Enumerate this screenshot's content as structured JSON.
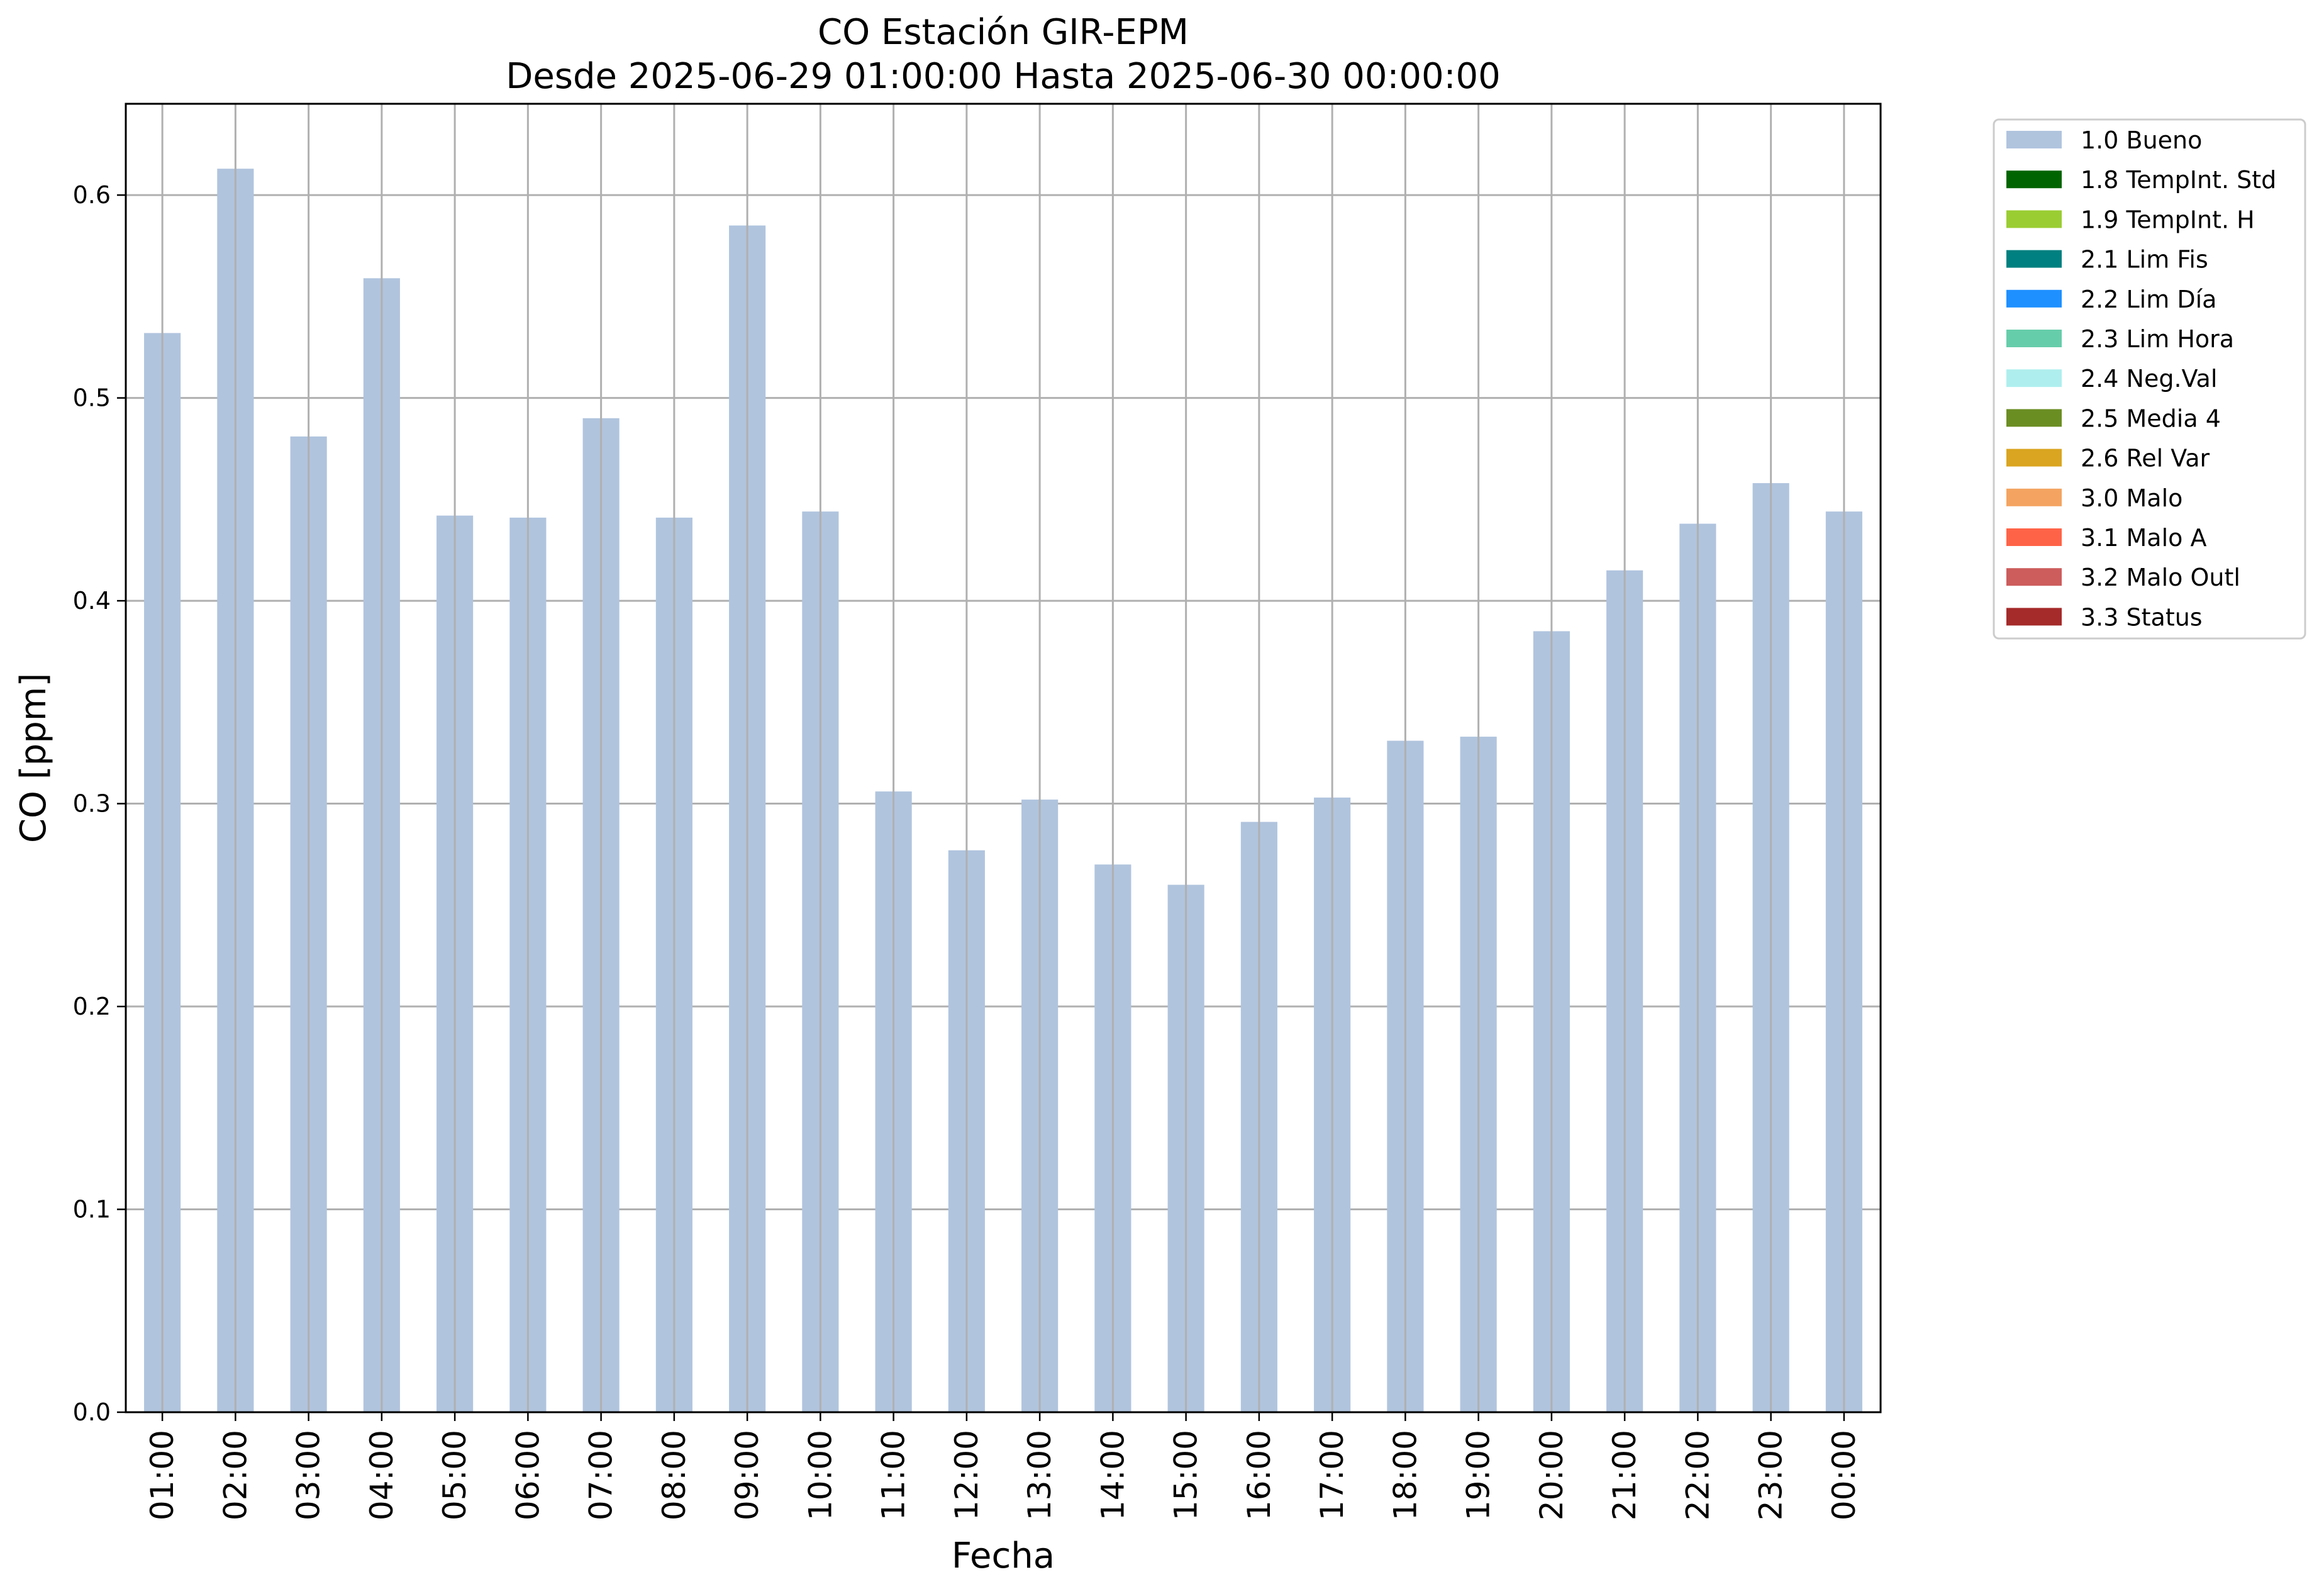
{
  "chart_data": {
    "type": "bar",
    "title": "CO Estación GIR-EPM",
    "subtitle": "Desde 2025-06-29 01:00:00 Hasta 2025-06-30 00:00:00",
    "xlabel": "Fecha",
    "ylabel": "CO [ppm]",
    "ylim": [
      0,
      0.645
    ],
    "yticks": [
      "0.0",
      "0.1",
      "0.2",
      "0.3",
      "0.4",
      "0.5",
      "0.6"
    ],
    "grid": true,
    "legend_position": "outside-top-right",
    "categories": [
      "01:00",
      "02:00",
      "03:00",
      "04:00",
      "05:00",
      "06:00",
      "07:00",
      "08:00",
      "09:00",
      "10:00",
      "11:00",
      "12:00",
      "13:00",
      "14:00",
      "15:00",
      "16:00",
      "17:00",
      "18:00",
      "19:00",
      "20:00",
      "21:00",
      "22:00",
      "23:00",
      "00:00"
    ],
    "series": [
      {
        "name": "1.0 Bueno",
        "color": "#b0c4de",
        "values": [
          0.532,
          0.613,
          0.481,
          0.559,
          0.442,
          0.441,
          0.49,
          0.441,
          0.585,
          0.444,
          0.306,
          0.277,
          0.302,
          0.27,
          0.26,
          0.291,
          0.303,
          0.331,
          0.333,
          0.385,
          0.415,
          0.438,
          0.458,
          0.444
        ]
      }
    ],
    "legend": [
      {
        "label": "1.0 Bueno",
        "color": "#b0c4de"
      },
      {
        "label": "1.8 TempInt. Std",
        "color": "#006400"
      },
      {
        "label": "1.9 TempInt. H",
        "color": "#9acd32"
      },
      {
        "label": "2.1 Lim Fis",
        "color": "#008080"
      },
      {
        "label": "2.2 Lim Día",
        "color": "#1e90ff"
      },
      {
        "label": "2.3 Lim Hora",
        "color": "#66cdaa"
      },
      {
        "label": "2.4 Neg.Val",
        "color": "#afeeee"
      },
      {
        "label": "2.5 Media 4",
        "color": "#6b8e23"
      },
      {
        "label": "2.6 Rel Var",
        "color": "#daa520"
      },
      {
        "label": "3.0 Malo",
        "color": "#f4a460"
      },
      {
        "label": "3.1 Malo A",
        "color": "#ff6347"
      },
      {
        "label": "3.2 Malo Outl",
        "color": "#cd5c5c"
      },
      {
        "label": "3.3 Status",
        "color": "#a52a2a"
      }
    ]
  }
}
